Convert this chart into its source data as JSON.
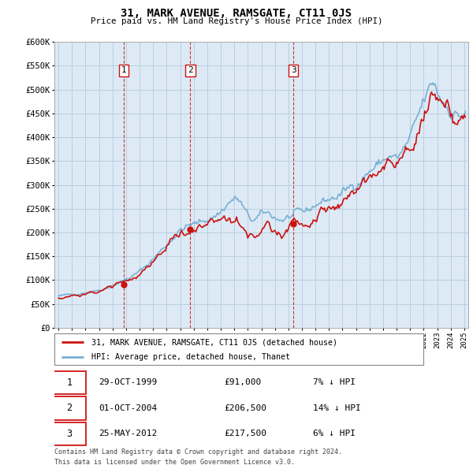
{
  "title": "31, MARK AVENUE, RAMSGATE, CT11 0JS",
  "subtitle": "Price paid vs. HM Land Registry's House Price Index (HPI)",
  "legend_line1": "31, MARK AVENUE, RAMSGATE, CT11 0JS (detached house)",
  "legend_line2": "HPI: Average price, detached house, Thanet",
  "transactions": [
    {
      "num": 1,
      "date": "29-OCT-1999",
      "price": "£91,000",
      "pct": "7% ↓ HPI",
      "year": 1999.83,
      "value": 91000
    },
    {
      "num": 2,
      "date": "01-OCT-2004",
      "price": "£206,500",
      "pct": "14% ↓ HPI",
      "year": 2004.75,
      "value": 206500
    },
    {
      "num": 3,
      "date": "25-MAY-2012",
      "price": "£217,500",
      "pct": "6% ↓ HPI",
      "year": 2012.38,
      "value": 217500
    }
  ],
  "footnote1": "Contains HM Land Registry data © Crown copyright and database right 2024.",
  "footnote2": "This data is licensed under the Open Government Licence v3.0.",
  "hpi_color": "#7aafd4",
  "price_color": "#cc1111",
  "vline_color": "#cc1111",
  "grid_color": "#b8cfe0",
  "bg_color": "#ddeaf5",
  "plot_bg": "#ddeaf5",
  "ylim": [
    0,
    600000
  ],
  "yticks": [
    0,
    50000,
    100000,
    150000,
    200000,
    250000,
    300000,
    350000,
    400000,
    450000,
    500000,
    550000,
    600000
  ],
  "xlim_start": 1994.7,
  "xlim_end": 2025.3
}
